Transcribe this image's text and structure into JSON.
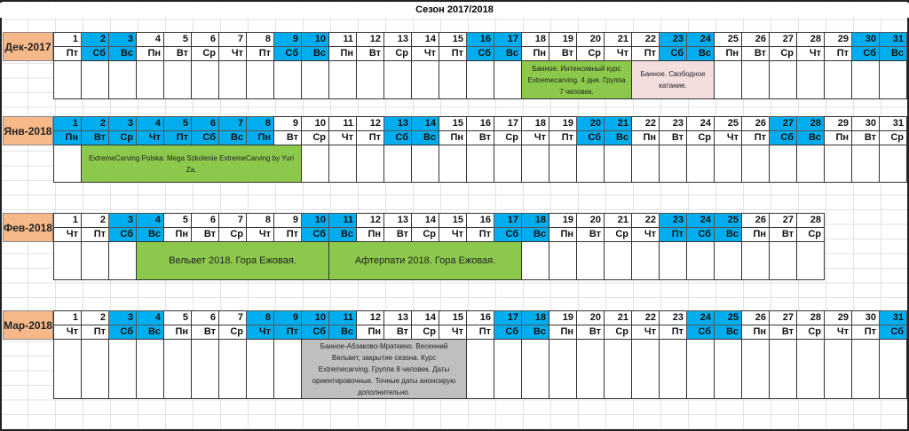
{
  "title": "Сезон 2017/2018",
  "colors": {
    "weekend": "#00aeef",
    "month_label": "#f8b98a",
    "green": "#8cc84b",
    "pink": "#f3dede",
    "gray": "#bfbfbf"
  },
  "months": [
    {
      "label": "Дек-2017",
      "weekdays": [
        "Пт",
        "Сб",
        "Вс",
        "Пн",
        "Вт",
        "Ср",
        "Чт",
        "Пт",
        "Сб",
        "Вс",
        "Пн",
        "Вт",
        "Ср",
        "Чт",
        "Пт",
        "Сб",
        "Вс",
        "Пн",
        "Вт",
        "Ср",
        "Чт",
        "Пт",
        "Сб",
        "Вс",
        "Пн",
        "Вт",
        "Ср",
        "Чт",
        "Пт",
        "Сб",
        "Вс"
      ],
      "highlighted": [
        2,
        3,
        9,
        10,
        16,
        17,
        23,
        24,
        30,
        31
      ],
      "events": [
        {
          "from": 18,
          "to": 21,
          "color": "green",
          "text": "Банное. Интенсивный курс Extremecarving. 4 дня. Группа 7 человек."
        },
        {
          "from": 22,
          "to": 24,
          "color": "pink",
          "text": "Банное. Свободное катание."
        }
      ]
    },
    {
      "label": "Янв-2018",
      "weekdays": [
        "Пн",
        "Вт",
        "Ср",
        "Чт",
        "Пт",
        "Сб",
        "Вс",
        "Пн",
        "Вт",
        "Ср",
        "Чт",
        "Пт",
        "Сб",
        "Вс",
        "Пн",
        "Вт",
        "Ср",
        "Чт",
        "Пт",
        "Сб",
        "Вс",
        "Пн",
        "Вт",
        "Ср",
        "Чт",
        "Пт",
        "Сб",
        "Вс",
        "Пн",
        "Вт",
        "Ср"
      ],
      "highlighted": [
        1,
        2,
        3,
        4,
        5,
        6,
        7,
        8,
        13,
        14,
        20,
        21,
        27,
        28
      ],
      "events": [
        {
          "from": 2,
          "to": 9,
          "color": "green",
          "text": "ExtremeCarving Polska: Mega Szkolenie ExtremeCarving by Yuri Za."
        }
      ]
    },
    {
      "label": "Фев-2018",
      "weekdays": [
        "Чт",
        "Пт",
        "Сб",
        "Вс",
        "Пн",
        "Вт",
        "Ср",
        "Чт",
        "Пт",
        "Сб",
        "Вс",
        "Пн",
        "Вт",
        "Ср",
        "Чт",
        "Пт",
        "Сб",
        "Вс",
        "Пн",
        "Вт",
        "Ср",
        "Чт",
        "Пт",
        "Сб",
        "Вс",
        "Пн",
        "Вт",
        "Ср"
      ],
      "highlighted": [
        3,
        4,
        10,
        11,
        17,
        18,
        23,
        24,
        25
      ],
      "events": [
        {
          "from": 4,
          "to": 10,
          "color": "green",
          "text": "Вельвет 2018. Гора Ежовая.",
          "big": true
        },
        {
          "from": 11,
          "to": 17,
          "color": "green",
          "text": "Афтерпати 2018. Гора Ежовая.",
          "big": true
        }
      ]
    },
    {
      "label": "Мар-2018",
      "weekdays": [
        "Чт",
        "Пт",
        "Сб",
        "Вс",
        "Пн",
        "Вт",
        "Ср",
        "Чт",
        "Пт",
        "Сб",
        "Вс",
        "Пн",
        "Вт",
        "Ср",
        "Чт",
        "Пт",
        "Сб",
        "Вс",
        "Пн",
        "Вт",
        "Ср",
        "Чт",
        "Пт",
        "Сб",
        "Вс",
        "Пн",
        "Вт",
        "Ср",
        "Чт",
        "Пт",
        "Сб"
      ],
      "highlighted": [
        3,
        4,
        8,
        9,
        10,
        11,
        17,
        18,
        24,
        25,
        31
      ],
      "events": [
        {
          "from": 10,
          "to": 15,
          "color": "gray",
          "text": "Банное-Абзаково-Мраткино. Весенний Вельвет, закрытие сезона. Курс Extremecarving. Группа 8 человек. Даты ориентировочные. Точные даты анонсирую дополнительно."
        }
      ]
    }
  ]
}
